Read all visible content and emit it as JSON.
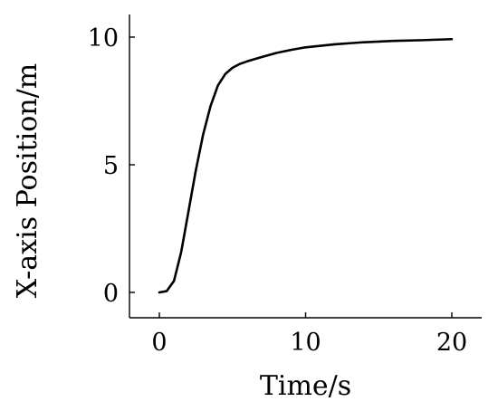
{
  "chart_data": {
    "type": "line",
    "title": "",
    "xlabel": "Time/s",
    "ylabel": "X-axis Position/m",
    "xlim": [
      -1,
      22
    ],
    "ylim": [
      -1,
      10.9
    ],
    "x_ticks": [
      0,
      10,
      20
    ],
    "y_ticks": [
      0,
      5,
      10
    ],
    "x_tick_labels": [
      "0",
      "10",
      "20"
    ],
    "y_tick_labels": [
      "0",
      "5",
      "10"
    ],
    "grid": false,
    "legend": "none",
    "series": [
      {
        "color": "#000000",
        "x": [
          0,
          0.5,
          1,
          1.5,
          2,
          2.5,
          3,
          3.5,
          4,
          4.5,
          5,
          5.5,
          6,
          7,
          8,
          9,
          10,
          12,
          14,
          16,
          18,
          20
        ],
        "y": [
          0,
          0.05,
          0.45,
          1.6,
          3.2,
          4.8,
          6.2,
          7.3,
          8.1,
          8.55,
          8.8,
          8.95,
          9.05,
          9.22,
          9.38,
          9.5,
          9.6,
          9.72,
          9.8,
          9.85,
          9.88,
          9.92
        ]
      }
    ]
  }
}
